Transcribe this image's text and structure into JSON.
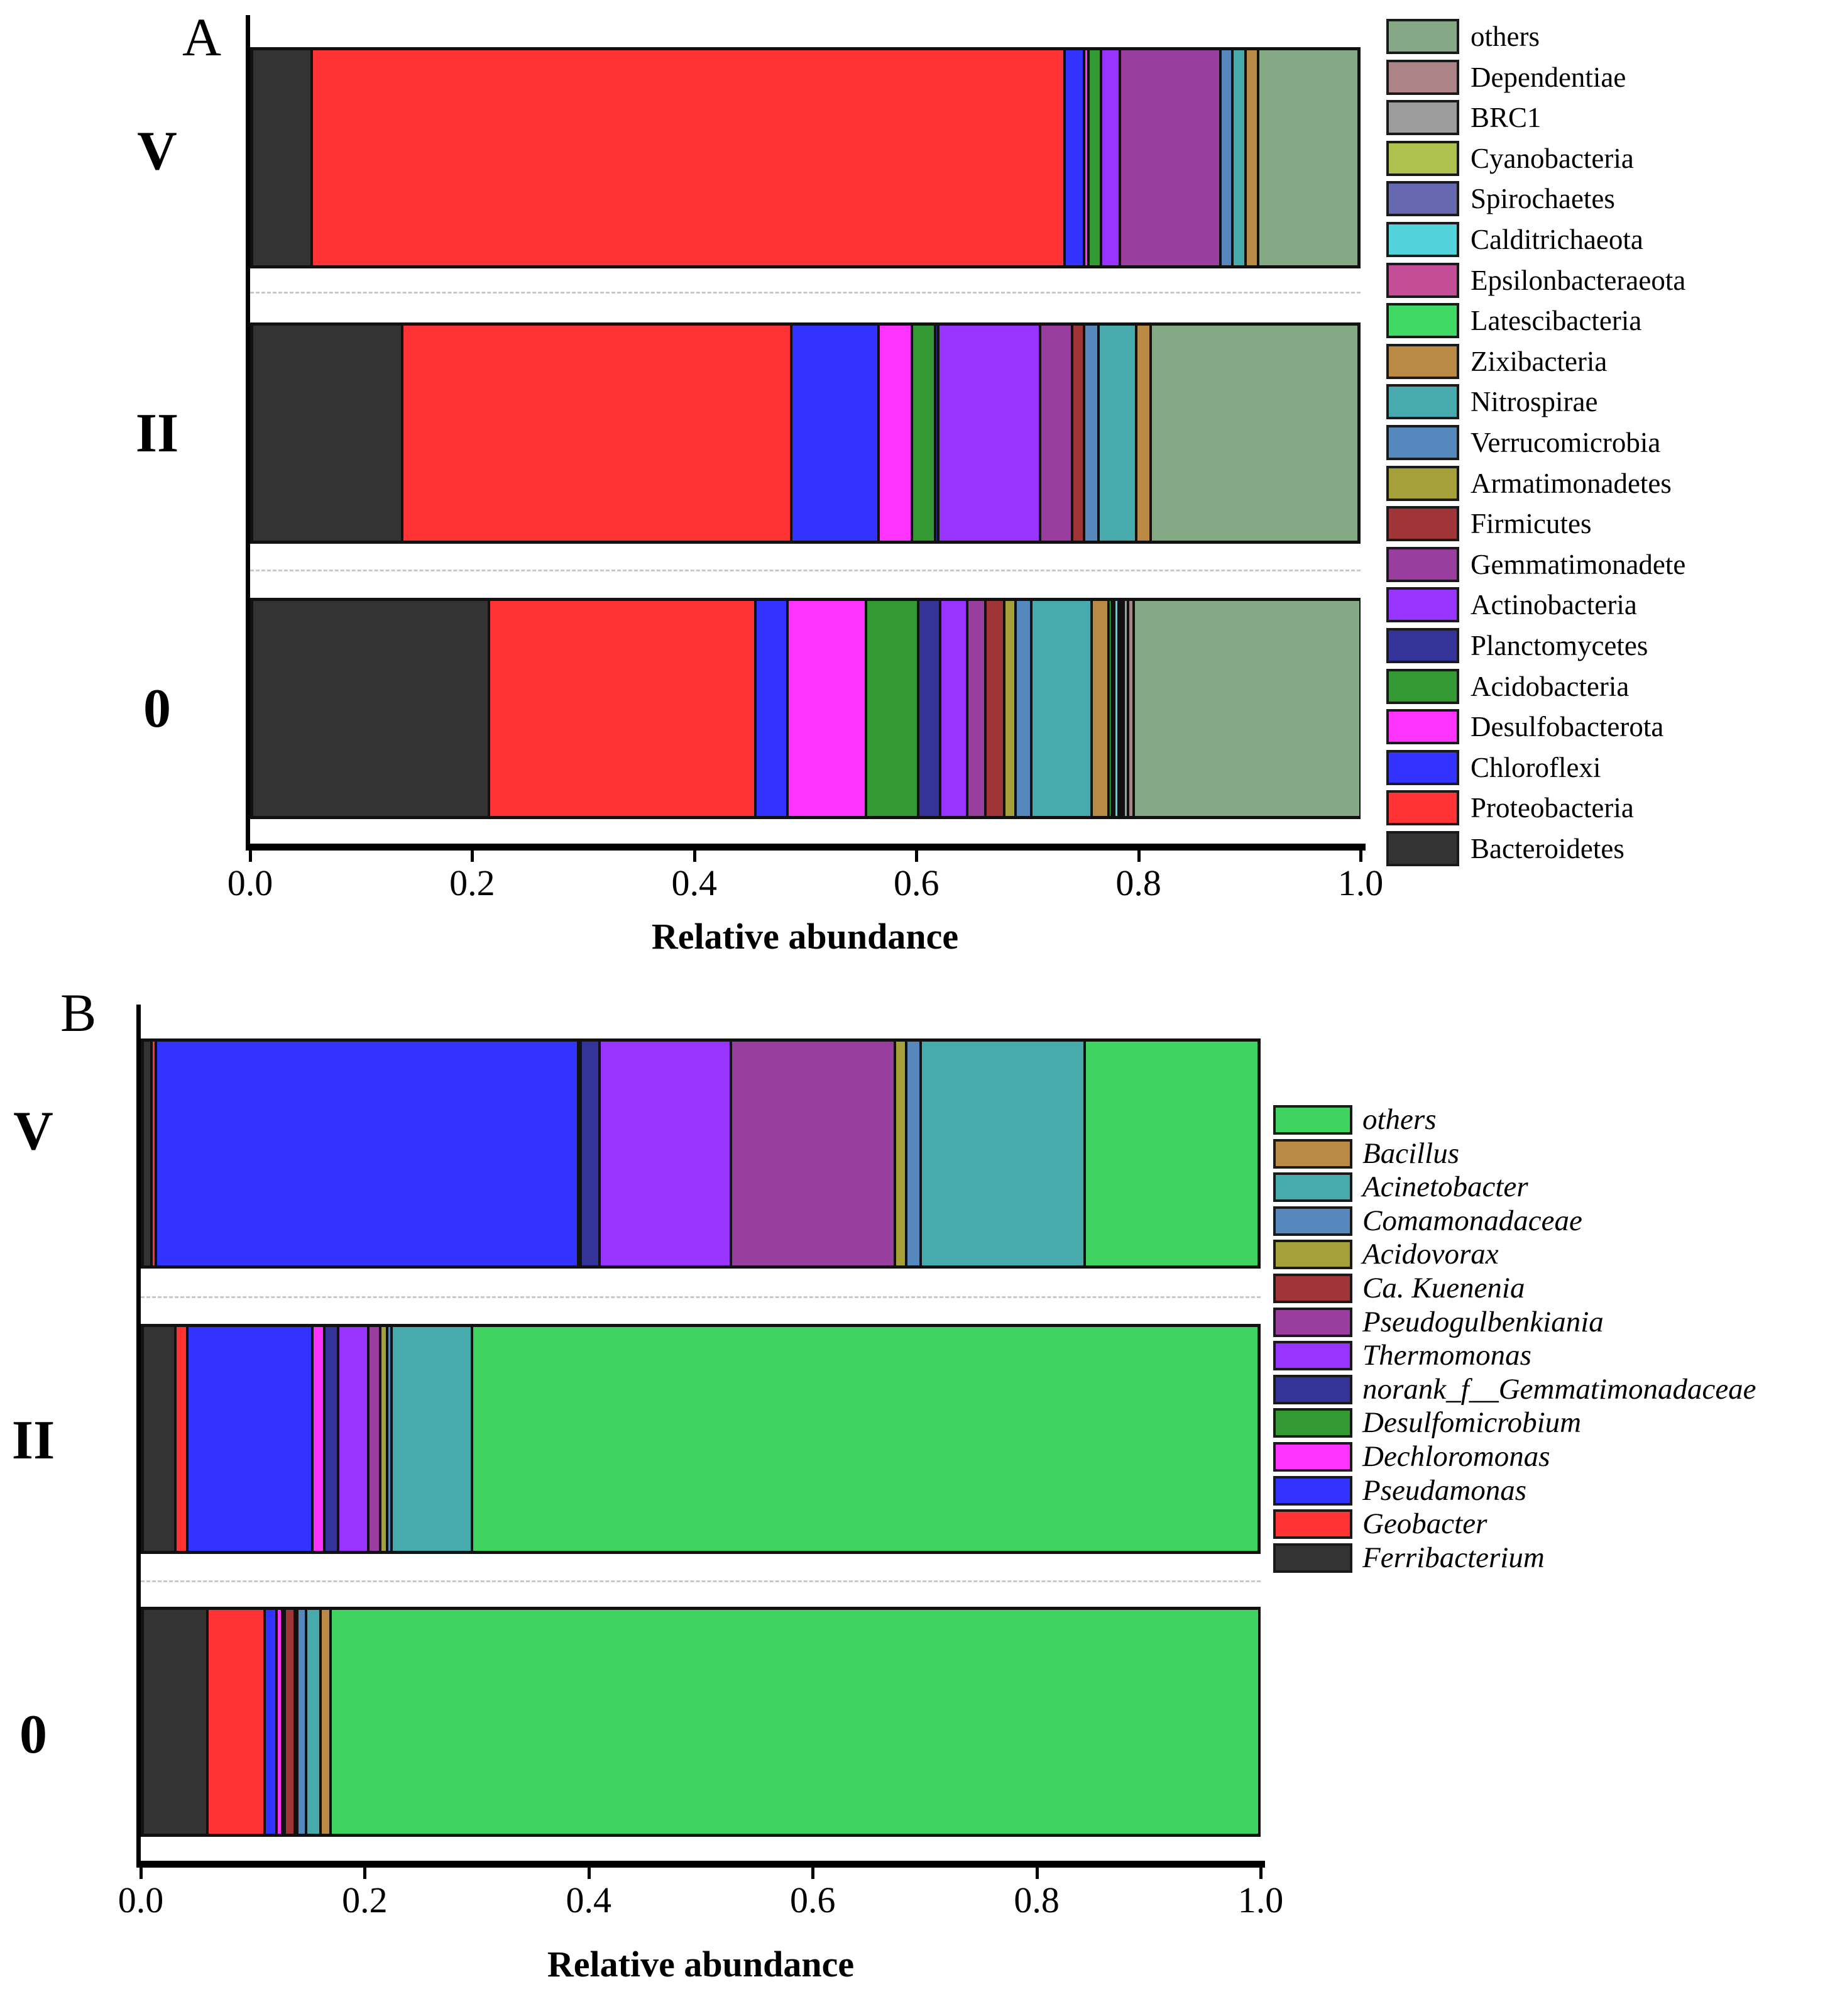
{
  "figure": {
    "background": "#ffffff",
    "bar_border_color": "#111111",
    "separator_color": "#c9c9c9"
  },
  "chart_data": [
    {
      "panel_label": "A",
      "type": "bar",
      "orientation": "horizontal",
      "stacked": true,
      "title": "",
      "xlabel": "Relative abundance",
      "xlim": [
        0,
        1
      ],
      "x_ticks": [
        0,
        0.2,
        0.4,
        0.6,
        0.8,
        1.0
      ],
      "x_tick_labels": [
        "0.0",
        "0.2",
        "0.4",
        "0.6",
        "0.8",
        "1.0"
      ],
      "categories": [
        "V",
        "II",
        "0"
      ],
      "grid": false,
      "legend_position": "right",
      "legend_italic": false,
      "legend_order": "reverse-of-stack-top-to-bottom",
      "series": [
        {
          "name": "Bacteroidetes",
          "color": "#333333",
          "values": [
            0.054,
            0.136,
            0.214
          ]
        },
        {
          "name": "Proteobacteria",
          "color": "#FF3333",
          "values": [
            0.68,
            0.351,
            0.241
          ]
        },
        {
          "name": "Chloroflexi",
          "color": "#3333FF",
          "values": [
            0.018,
            0.079,
            0.029
          ]
        },
        {
          "name": "Desulfobacterota",
          "color": "#FF33FF",
          "values": [
            0.004,
            0.03,
            0.071
          ]
        },
        {
          "name": "Acidobacteria",
          "color": "#339933",
          "values": [
            0.011,
            0.021,
            0.047
          ]
        },
        {
          "name": "Planctomycetes",
          "color": "#333399",
          "values": [
            0.0,
            0.003,
            0.02
          ]
        },
        {
          "name": "Actinobacteria",
          "color": "#9933FF",
          "values": [
            0.017,
            0.092,
            0.024
          ]
        },
        {
          "name": "Gemmatimonadete",
          "color": "#993D9E",
          "values": [
            0.091,
            0.029,
            0.017
          ]
        },
        {
          "name": "Firmicutes",
          "color": "#A03537",
          "values": [
            0.0,
            0.011,
            0.017
          ]
        },
        {
          "name": "Armatimonadetes",
          "color": "#A5A039",
          "values": [
            0.0,
            0.0,
            0.01
          ]
        },
        {
          "name": "Verrucomicrobia",
          "color": "#5688BE",
          "values": [
            0.011,
            0.013,
            0.014
          ]
        },
        {
          "name": "Nitrospirae",
          "color": "#47AAAD",
          "values": [
            0.012,
            0.034,
            0.055
          ]
        },
        {
          "name": "Zixibacteria",
          "color": "#BA8A45",
          "values": [
            0.011,
            0.013,
            0.015
          ]
        },
        {
          "name": "Latescibacteria",
          "color": "#3FD963",
          "values": [
            0.0,
            0.0,
            0.003
          ]
        },
        {
          "name": "Epsilonbacteraeota",
          "color": "#C34D96",
          "values": [
            0.0,
            0.0,
            0.001
          ]
        },
        {
          "name": "Calditrichaeota",
          "color": "#52D2DB",
          "values": [
            0.0,
            0.0,
            0.004
          ]
        },
        {
          "name": "Spirochaetes",
          "color": "#6568AE",
          "values": [
            0.0,
            0.0,
            0.002
          ]
        },
        {
          "name": "Cyanobacteria",
          "color": "#AEC04E",
          "values": [
            0.0,
            0.0,
            0.002
          ]
        },
        {
          "name": "BRC1",
          "color": "#9C9C9C",
          "values": [
            0.0,
            0.0,
            0.004
          ]
        },
        {
          "name": "Dependentiae",
          "color": "#AC8488",
          "values": [
            0.0,
            0.0,
            0.005
          ]
        },
        {
          "name": "others",
          "color": "#84A984",
          "values": [
            0.091,
            0.188,
            0.205
          ]
        }
      ]
    },
    {
      "panel_label": "B",
      "type": "bar",
      "orientation": "horizontal",
      "stacked": true,
      "title": "",
      "xlabel": "Relative abundance",
      "xlim": [
        0,
        1
      ],
      "x_ticks": [
        0,
        0.2,
        0.4,
        0.6,
        0.8,
        1.0
      ],
      "x_tick_labels": [
        "0.0",
        "0.2",
        "0.4",
        "0.6",
        "0.8",
        "1.0"
      ],
      "categories": [
        "V",
        "II",
        "0"
      ],
      "grid": false,
      "legend_position": "right",
      "legend_italic": true,
      "legend_order": "reverse-of-stack-top-to-bottom",
      "series": [
        {
          "name": "Ferribacterium",
          "color": "#333333",
          "values": [
            0.008,
            0.029,
            0.058
          ]
        },
        {
          "name": "Geobacter",
          "color": "#FF3333",
          "values": [
            0.004,
            0.011,
            0.051
          ]
        },
        {
          "name": "Pseudamonas",
          "color": "#3333FF",
          "values": [
            0.378,
            0.112,
            0.011
          ]
        },
        {
          "name": "Dechloromonas",
          "color": "#FF33FF",
          "values": [
            0.002,
            0.011,
            0.005
          ]
        },
        {
          "name": "Desulfomicrobium",
          "color": "#339933",
          "values": [
            0.0,
            0.0,
            0.002
          ]
        },
        {
          "name": "norank_f__Gemmatimonadaceae",
          "color": "#333399",
          "values": [
            0.017,
            0.012,
            0.0
          ]
        },
        {
          "name": "Thermomonas",
          "color": "#9933FF",
          "values": [
            0.118,
            0.027,
            0.0
          ]
        },
        {
          "name": "Pseudogulbenkiania",
          "color": "#993D9E",
          "values": [
            0.147,
            0.011,
            0.0
          ]
        },
        {
          "name": "Ca. Kuenenia",
          "color": "#A03537",
          "values": [
            0.0,
            0.0,
            0.009
          ]
        },
        {
          "name": "Acidovorax",
          "color": "#A5A039",
          "values": [
            0.01,
            0.006,
            0.002
          ]
        },
        {
          "name": "Comamonadaceae",
          "color": "#5688BE",
          "values": [
            0.013,
            0.004,
            0.008
          ]
        },
        {
          "name": "Acinetobacter",
          "color": "#47AAAD",
          "values": [
            0.147,
            0.072,
            0.013
          ]
        },
        {
          "name": "Bacillus",
          "color": "#BA8A45",
          "values": [
            0.0,
            0.0,
            0.009
          ]
        },
        {
          "name": "others",
          "color": "#3FD35F",
          "values": [
            0.156,
            0.705,
            0.832
          ]
        }
      ]
    }
  ]
}
